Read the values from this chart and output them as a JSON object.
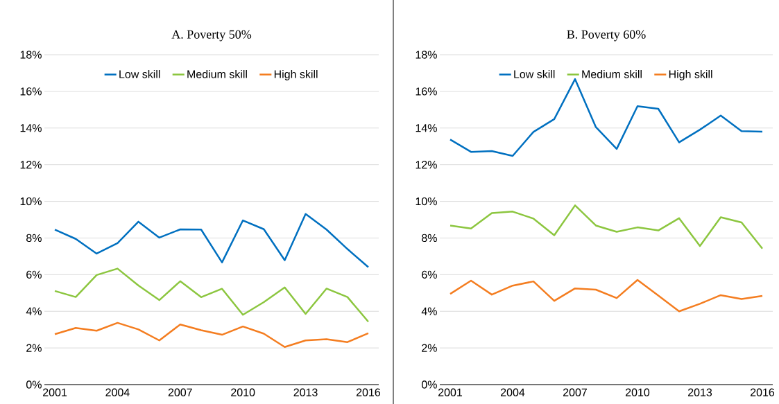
{
  "chart_data": [
    {
      "type": "line",
      "title": "A. Poverty 50%",
      "categories": [
        "2001",
        null,
        null,
        "2004",
        null,
        null,
        "2007",
        null,
        null,
        "2010",
        null,
        null,
        "2013",
        null,
        null,
        "2016"
      ],
      "series": [
        {
          "name": "Low skill",
          "color": "#0070c0",
          "values": [
            8.46,
            7.95,
            7.15,
            7.72,
            8.89,
            8.02,
            8.47,
            8.46,
            6.67,
            8.96,
            8.48,
            6.79,
            9.31,
            8.46,
            7.4,
            6.41
          ]
        },
        {
          "name": "Medium skill",
          "color": "#8cc63f",
          "values": [
            5.11,
            4.78,
            5.98,
            6.33,
            5.41,
            4.61,
            5.64,
            4.77,
            5.23,
            3.81,
            4.5,
            5.3,
            3.86,
            5.24,
            4.78,
            3.43
          ]
        },
        {
          "name": "High skill",
          "color": "#f47d20",
          "values": [
            2.75,
            3.09,
            2.94,
            3.37,
            3.01,
            2.41,
            3.28,
            2.97,
            2.72,
            3.17,
            2.78,
            2.05,
            2.41,
            2.48,
            2.32,
            2.8
          ]
        }
      ],
      "ylim": [
        0,
        18
      ],
      "yticks": [
        {
          "value": 0,
          "label": "0%"
        },
        {
          "value": 2,
          "label": "2%"
        },
        {
          "value": 4,
          "label": "4%"
        },
        {
          "value": 6,
          "label": "6%"
        },
        {
          "value": 8,
          "label": "8%"
        },
        {
          "value": 10,
          "label": "10%"
        },
        {
          "value": 12,
          "label": "12%"
        },
        {
          "value": 14,
          "label": "14%"
        },
        {
          "value": 16,
          "label": "16%"
        },
        {
          "value": 18,
          "label": "18%"
        }
      ],
      "grid": "y",
      "legend": "top"
    },
    {
      "type": "line",
      "title": "B. Poverty 60%",
      "categories": [
        "2001",
        null,
        null,
        "2004",
        null,
        null,
        "2007",
        null,
        null,
        "2010",
        null,
        null,
        "2013",
        null,
        null,
        "2016"
      ],
      "series": [
        {
          "name": "Low skill",
          "color": "#0070c0",
          "values": [
            13.37,
            12.7,
            12.74,
            12.48,
            13.79,
            14.49,
            16.67,
            14.05,
            12.86,
            15.19,
            15.05,
            13.22,
            13.91,
            14.68,
            13.83,
            13.8
          ]
        },
        {
          "name": "Medium skill",
          "color": "#8cc63f",
          "values": [
            8.68,
            8.52,
            9.36,
            9.44,
            9.06,
            8.15,
            9.78,
            8.68,
            8.34,
            8.58,
            8.41,
            9.08,
            7.56,
            9.13,
            8.85,
            7.42
          ]
        },
        {
          "name": "High skill",
          "color": "#f47d20",
          "values": [
            4.95,
            5.67,
            4.91,
            5.4,
            5.63,
            4.57,
            5.25,
            5.18,
            4.72,
            5.71,
            4.86,
            4.0,
            4.41,
            4.88,
            4.67,
            4.84
          ]
        }
      ],
      "ylim": [
        0,
        18
      ],
      "yticks": [
        {
          "value": 0,
          "label": "0%"
        },
        {
          "value": 2,
          "label": "2%"
        },
        {
          "value": 4,
          "label": "4%"
        },
        {
          "value": 6,
          "label": "6%"
        },
        {
          "value": 8,
          "label": "8%"
        },
        {
          "value": 10,
          "label": "10%"
        },
        {
          "value": 12,
          "label": "12%"
        },
        {
          "value": 14,
          "label": "14%"
        },
        {
          "value": 16,
          "label": "16%"
        },
        {
          "value": 18,
          "label": "18%"
        }
      ],
      "grid": "y",
      "legend": "top"
    }
  ]
}
